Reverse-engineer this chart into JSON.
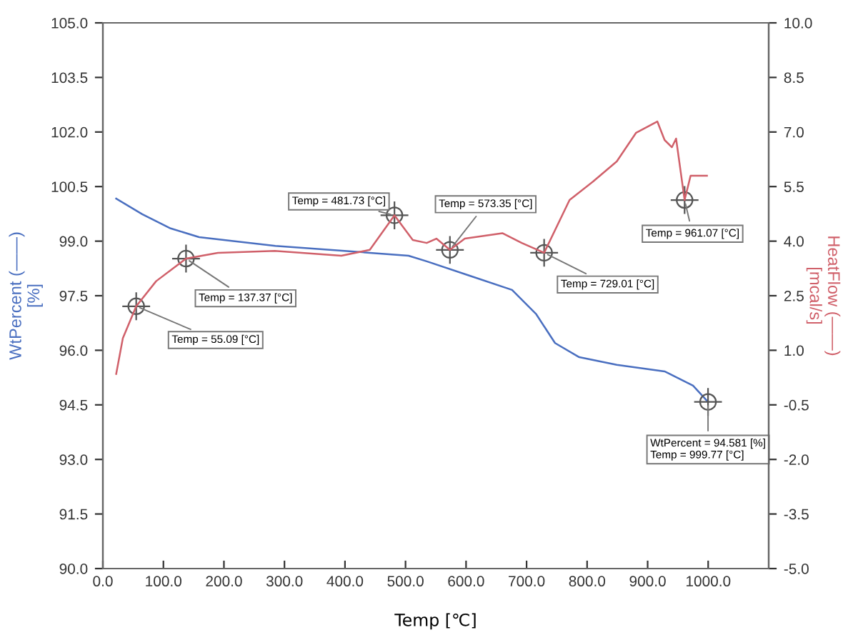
{
  "chart_data": {
    "type": "line",
    "xlabel": "Temp [℃]",
    "ylabel": "WtPercent (——)\n[%]",
    "y2label": "HeatFlow (——)\n[mcal/s]",
    "xlim": [
      0,
      1100
    ],
    "xticks": [
      {
        "value": 0,
        "label": "0.0"
      },
      {
        "value": 100,
        "label": "100.0"
      },
      {
        "value": 200,
        "label": "200.0"
      },
      {
        "value": 300,
        "label": "300.0"
      },
      {
        "value": 400,
        "label": "400.0"
      },
      {
        "value": 500,
        "label": "500.0"
      },
      {
        "value": 600,
        "label": "600.0"
      },
      {
        "value": 700,
        "label": "700.0"
      },
      {
        "value": 800,
        "label": "800.0"
      },
      {
        "value": 900,
        "label": "900.0"
      },
      {
        "value": 1000,
        "label": "1000.0"
      }
    ],
    "ylim": [
      90,
      105
    ],
    "yticks": [
      {
        "value": 90,
        "label": "90.0"
      },
      91.5,
      {
        "value": 93,
        "label": "93.0"
      },
      94.5,
      {
        "value": 96,
        "label": "96.0"
      },
      97.5,
      {
        "value": 99,
        "label": "99.0"
      },
      100.5,
      {
        "value": 102,
        "label": "102.0"
      },
      103.5,
      {
        "value": 105,
        "label": "105.0"
      }
    ],
    "y2lim": [
      -5,
      10
    ],
    "y2ticks": [
      {
        "value": -5,
        "label": "-5.0"
      },
      -3.5,
      {
        "value": -2,
        "label": "-2.0"
      },
      -0.5,
      {
        "value": 1,
        "label": "1.0"
      },
      2.5,
      {
        "value": 4,
        "label": "4.0"
      },
      5.5,
      {
        "value": 7,
        "label": "7.0"
      },
      8.5,
      {
        "value": 10,
        "label": "10.0"
      }
    ],
    "series": [
      {
        "color": "#4a6fc0",
        "x": [
          22,
          65,
          112,
          159,
          285,
          441,
          505,
          536,
          606,
          676,
          716,
          747,
          787,
          849,
          928,
          975,
          999.77
        ],
        "values": [
          100.17,
          99.74,
          99.35,
          99.11,
          98.87,
          98.68,
          98.6,
          98.44,
          98.05,
          97.66,
          96.99,
          96.2,
          95.81,
          95.6,
          95.42,
          95.03,
          94.58
        ]
      },
      {
        "color": "#d0606a",
        "axis": "y2",
        "x": [
          22,
          33,
          55.09,
          88,
          137.37,
          190,
          284,
          394,
          441,
          481.73,
          512,
          535,
          551,
          573.35,
          598,
          660,
          692,
          729.01,
          771,
          810,
          849,
          881,
          916,
          928,
          940,
          947,
          961.07,
          971,
          987,
          998
        ],
        "values": [
          0.35,
          1.33,
          2.21,
          2.9,
          3.52,
          3.68,
          3.73,
          3.6,
          3.76,
          4.71,
          4.03,
          3.95,
          4.07,
          3.76,
          4.07,
          4.22,
          3.95,
          3.68,
          5.13,
          5.64,
          6.19,
          6.98,
          7.29,
          6.78,
          6.58,
          6.82,
          5.13,
          5.8,
          5.8,
          5.8
        ]
      }
    ],
    "annotations": [
      {
        "text": "Temp = 55.09 [°C]",
        "x": 55.09,
        "y": 97.21
      },
      {
        "text": "Temp = 137.37 [°C]",
        "x": 137.37,
        "y": 98.52
      },
      {
        "text": "Temp = 481.73 [°C]",
        "x": 481.73,
        "y": 99.71
      },
      {
        "text": "Temp = 573.35 [°C]",
        "x": 573.35,
        "y": 98.76
      },
      {
        "text": "Temp = 729.01 [°C]",
        "x": 729.01,
        "y": 98.68
      },
      {
        "text": "Temp = 961.07 [°C]",
        "x": 961.07,
        "y": 100.13
      },
      {
        "text": "WtPercent = 94.581 [%]\nTemp = 999.77 [°C]",
        "x": 999.77,
        "y": 94.58
      }
    ],
    "grid": false,
    "legend": false
  }
}
